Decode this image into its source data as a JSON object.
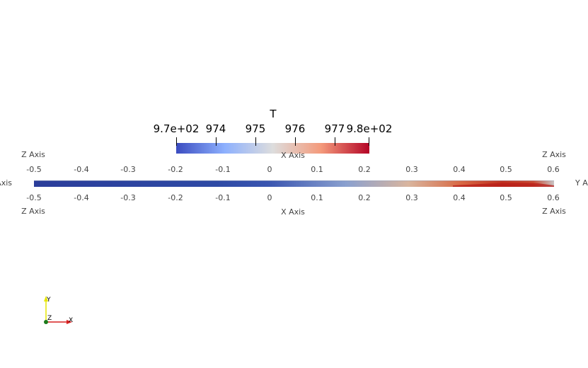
{
  "view": {
    "background": "#ffffff"
  },
  "colorbar": {
    "title": "T",
    "tick_labels": [
      "9.7e+02",
      "974",
      "975",
      "976",
      "977",
      "9.8e+02"
    ],
    "colormap": "Cool to Warm",
    "colors": [
      "#3b4cc0",
      "#8db0fe",
      "#dddddd",
      "#f49a7b",
      "#b40426"
    ]
  },
  "cube_axes": {
    "top_left_label": "Z Axis",
    "top_center_label": "X Axis",
    "top_right_label": "Z Axis",
    "left_label": "Y Axis",
    "right_label": "Y Axis",
    "bottom_left_label": "Z Axis",
    "bottom_center_label": "X Axis",
    "bottom_right_label": "Z Axis",
    "top_ticks": [
      "-0.5",
      "-0.4",
      "-0.3",
      "-0.2",
      "-0.1",
      "0",
      "0.1",
      "0.2",
      "0.3",
      "0.4",
      "0.5",
      "0.6"
    ],
    "bottom_ticks": [
      "-0.5",
      "-0.4",
      "-0.3",
      "-0.2",
      "-0.1",
      "0",
      "0.1",
      "0.2",
      "0.3",
      "0.4",
      "0.5",
      "0.6"
    ]
  },
  "orientation_triad": {
    "x_label": "X",
    "y_label": "Y",
    "z_label": "Z",
    "x_color": "#d62020",
    "y_color": "#e6e600",
    "z_color": "#1a7a1a"
  }
}
